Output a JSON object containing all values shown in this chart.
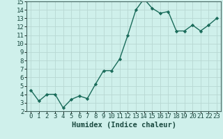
{
  "xlabel": "Humidex (Indice chaleur)",
  "x": [
    0,
    1,
    2,
    3,
    4,
    5,
    6,
    7,
    8,
    9,
    10,
    11,
    12,
    13,
    14,
    15,
    16,
    17,
    18,
    19,
    20,
    21,
    22,
    23
  ],
  "y": [
    4.5,
    3.2,
    4.0,
    4.0,
    2.4,
    3.4,
    3.8,
    3.5,
    5.2,
    6.8,
    6.8,
    8.2,
    11.0,
    14.0,
    15.3,
    14.2,
    13.6,
    13.8,
    11.5,
    11.5,
    12.2,
    11.5,
    12.2,
    13.0
  ],
  "line_color": "#1a6b5a",
  "marker": "D",
  "marker_size": 2.2,
  "background_color": "#cff0eb",
  "grid_color_major": "#b8d8d3",
  "grid_color_minor": "#d0e8e4",
  "ylim": [
    2,
    15
  ],
  "xlim": [
    -0.5,
    23.5
  ],
  "yticks": [
    2,
    3,
    4,
    5,
    6,
    7,
    8,
    9,
    10,
    11,
    12,
    13,
    14,
    15
  ],
  "xticks": [
    0,
    1,
    2,
    3,
    4,
    5,
    6,
    7,
    8,
    9,
    10,
    11,
    12,
    13,
    14,
    15,
    16,
    17,
    18,
    19,
    20,
    21,
    22,
    23
  ],
  "tick_fontsize": 6.5,
  "xlabel_fontsize": 7.5,
  "line_width": 1.0
}
